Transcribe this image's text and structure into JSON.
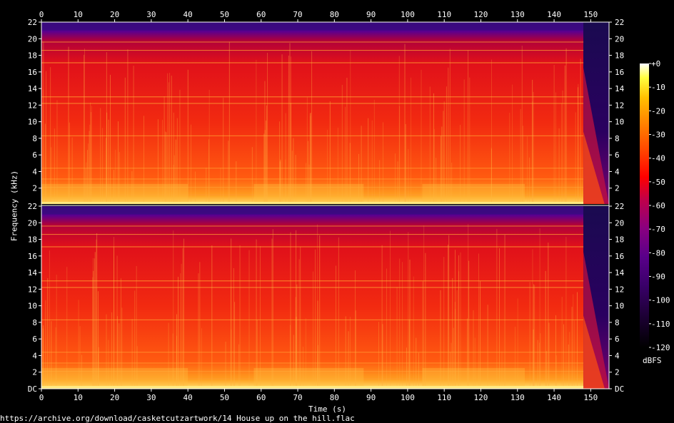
{
  "chart_data": [
    {
      "type": "heatmap",
      "title": "",
      "xlabel": "Time (s)",
      "ylabel": "Frequency (kHz)",
      "x_ticks": [
        0,
        10,
        20,
        30,
        40,
        50,
        60,
        70,
        80,
        90,
        100,
        110,
        120,
        130,
        140,
        150
      ],
      "xlim": [
        0,
        155
      ],
      "channels": [
        {
          "y_ticks": [
            "22",
            "20",
            "18",
            "16",
            "14",
            "12",
            "10",
            "8",
            "6",
            "4",
            "2"
          ],
          "ylim": [
            0,
            22
          ]
        },
        {
          "y_ticks": [
            "22",
            "20",
            "18",
            "16",
            "14",
            "12",
            "10",
            "8",
            "6",
            "4",
            "2",
            "DC"
          ],
          "ylim": [
            0,
            22
          ]
        }
      ],
      "audio_end_s": 148,
      "colorbar": {
        "label": "dBFS",
        "ticks": [
          "+0",
          "-10",
          "-20",
          "-30",
          "-40",
          "-50",
          "-60",
          "-70",
          "-80",
          "-90",
          "-100",
          "-110",
          "-120"
        ],
        "range": [
          -120,
          0
        ],
        "colors": [
          "#000000",
          "#1a0030",
          "#3a006a",
          "#5a008a",
          "#8a0080",
          "#c0004a",
          "#ff0000",
          "#ff4a00",
          "#ff8a00",
          "#ffc000",
          "#ffff40",
          "#ffffff"
        ]
      }
    }
  ],
  "footer": {
    "source_url": "https://archive.org/download/casketcutzartwork/14 House up on the hill.flac"
  }
}
